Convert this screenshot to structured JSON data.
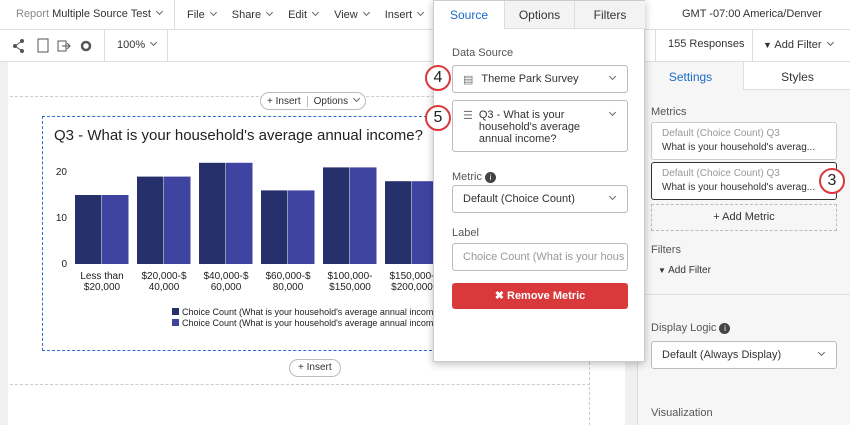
{
  "toolbar": {
    "report_label": "Report",
    "report_name": "Multiple Source Test",
    "menus": [
      "File",
      "Share",
      "Edit",
      "View",
      "Insert"
    ],
    "timezone": "GMT -07:00 America/Denver",
    "zoom": "100%",
    "responses": "155 Responses",
    "add_filter": "Add Filter"
  },
  "canvas": {
    "insert_top": "Insert",
    "options": "Options",
    "insert_bottom": "Insert"
  },
  "chart_data": {
    "type": "bar",
    "title": "Q3 - What is your household's average annual income?",
    "categories": [
      [
        "Less than",
        "$20,000"
      ],
      [
        "$20,000-$",
        "40,000"
      ],
      [
        "$40,000-$",
        "60,000"
      ],
      [
        "$60,000-$",
        "80,000"
      ],
      [
        "$100,000-",
        "$150,000"
      ],
      [
        "$150,000-",
        "$200,000"
      ]
    ],
    "series": [
      {
        "name": "Choice Count (What is your household's average annual income?)",
        "color": "#25306b",
        "values": [
          15,
          19,
          22,
          16,
          21,
          18
        ]
      },
      {
        "name": "Choice Count (What is your household's average annual income?)",
        "color": "#3f44a0",
        "values": [
          15,
          19,
          22,
          16,
          21,
          18
        ]
      }
    ],
    "ylim": [
      0,
      25
    ],
    "yticks": [
      0,
      10,
      20
    ],
    "grid": false
  },
  "popup": {
    "tabs": [
      "Source",
      "Options",
      "Filters"
    ],
    "data_source_label": "Data Source",
    "data_source": "Theme Park Survey",
    "question": "Q3 - What is your household's average annual income?",
    "metric_label": "Metric",
    "metric": "Default (Choice Count)",
    "label_label": "Label",
    "label_placeholder": "Choice Count (What is your hous",
    "remove": "Remove Metric"
  },
  "panel": {
    "tabs": [
      "Settings",
      "Styles"
    ],
    "metrics_label": "Metrics",
    "metrics": [
      {
        "line1": "Default (Choice Count) Q3",
        "line2": "What is your household's averag..."
      },
      {
        "line1": "Default (Choice Count) Q3",
        "line2": "What is your household's averag..."
      }
    ],
    "add_metric": "Add Metric",
    "filters_label": "Filters",
    "add_filter": "Add Filter",
    "display_logic_label": "Display Logic",
    "display_logic": "Default (Always Display)",
    "visualization_label": "Visualization"
  },
  "callouts": [
    "4",
    "5",
    "3"
  ]
}
